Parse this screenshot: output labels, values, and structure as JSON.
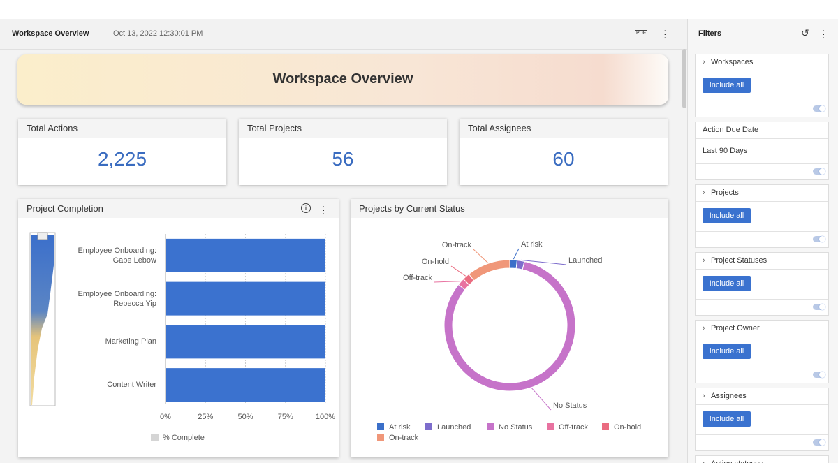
{
  "header": {
    "title": "Workspace Overview",
    "timestamp": "Oct 13, 2022 12:30:01 PM",
    "pdf": "PDF"
  },
  "banner": {
    "title": "Workspace Overview"
  },
  "kpis": [
    {
      "label": "Total Actions",
      "value": "2,225"
    },
    {
      "label": "Total Projects",
      "value": "56"
    },
    {
      "label": "Total Assignees",
      "value": "60"
    }
  ],
  "chart_data": [
    {
      "type": "bar",
      "title": "Project Completion",
      "orientation": "horizontal",
      "categories": [
        "Employee Onboarding: Gabe Lebow",
        "Employee Onboarding: Rebecca Yip",
        "Marketing Plan",
        "Content Writer"
      ],
      "values": [
        100,
        100,
        100,
        100
      ],
      "color": "#3b72cf",
      "legend": "% Complete",
      "xlim": [
        0,
        100
      ],
      "xticks": [
        {
          "value": 0,
          "label": "0%"
        },
        {
          "value": 25,
          "label": "25%"
        },
        {
          "value": 50,
          "label": "50%"
        },
        {
          "value": 75,
          "label": "75%"
        },
        {
          "value": 100,
          "label": "100%"
        }
      ],
      "grid": true
    },
    {
      "type": "pie",
      "title": "Projects by Current Status",
      "categories": [
        "At risk",
        "Launched",
        "No Status",
        "Off-track",
        "On-hold",
        "On-track"
      ],
      "values": [
        1,
        1,
        46,
        1,
        1,
        6
      ],
      "colors": [
        "#3b6fc9",
        "#7d6dcc",
        "#c673c9",
        "#e872a0",
        "#ea6c80",
        "#f09779"
      ],
      "donut": true
    }
  ],
  "filters": {
    "title": "Filters",
    "sections": [
      {
        "label": "Workspaces",
        "button": "Include all"
      },
      {
        "label": "Action Due Date",
        "value": "Last 90 Days"
      },
      {
        "label": "Projects",
        "button": "Include all"
      },
      {
        "label": "Project Statuses",
        "button": "Include all"
      },
      {
        "label": "Project Owner",
        "button": "Include all"
      },
      {
        "label": "Assignees",
        "button": "Include all"
      },
      {
        "label": "Action statuses"
      }
    ]
  }
}
